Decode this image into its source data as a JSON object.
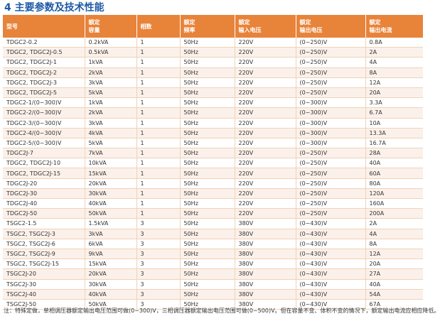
{
  "section_title": "4 主要参数及技术性能",
  "table": {
    "headers": [
      [
        "型号",
        ""
      ],
      [
        "额定",
        "容量"
      ],
      [
        "相数",
        ""
      ],
      [
        "额定",
        "频率"
      ],
      [
        "额定",
        "输入电压"
      ],
      [
        "额定",
        "输出电压"
      ],
      [
        "额定",
        "输出电流"
      ]
    ],
    "rows": [
      [
        "TDGC2-0.2",
        "0.2kVA",
        "1",
        "50Hz",
        "220V",
        "(0~250)V",
        "0.8A"
      ],
      [
        "TDGC2, TDGC2J-0.5",
        "0.5kVA",
        "1",
        "50Hz",
        "220V",
        "(0~250)V",
        "2A"
      ],
      [
        "TDGC2, TDGC2J-1",
        "1kVA",
        "1",
        "50Hz",
        "220V",
        "(0~250)V",
        "4A"
      ],
      [
        "TDGC2, TDGC2J-2",
        "2kVA",
        "1",
        "50Hz",
        "220V",
        "(0~250)V",
        "8A"
      ],
      [
        "TDGC2, TDGC2J-3",
        "3kVA",
        "1",
        "50Hz",
        "220V",
        "(0~250)V",
        "12A"
      ],
      [
        "TDGC2, TDGC2J-5",
        "5kVA",
        "1",
        "50Hz",
        "220V",
        "(0~250)V",
        "20A"
      ],
      [
        "TDGC2-1/(0~300)V",
        "1kVA",
        "1",
        "50Hz",
        "220V",
        "(0~300)V",
        "3.3A"
      ],
      [
        "TDGC2-2/(0~300)V",
        "2kVA",
        "1",
        "50Hz",
        "220V",
        "(0~300)V",
        "6.7A"
      ],
      [
        "TDGC2-3/(0~300)V",
        "3kVA",
        "1",
        "50Hz",
        "220V",
        "(0~300)V",
        "10A"
      ],
      [
        "TDGC2-4/(0~300)V",
        "4kVA",
        "1",
        "50Hz",
        "220V",
        "(0~300)V",
        "13.3A"
      ],
      [
        "TDGC2-5/(0~300)V",
        "5kVA",
        "1",
        "50Hz",
        "220V",
        "(0~300)V",
        "16.7A"
      ],
      [
        "TDGC2J-7",
        "7kVA",
        "1",
        "50Hz",
        "220V",
        "(0~250)V",
        "28A"
      ],
      [
        "TDGC2, TDGC2J-10",
        "10kVA",
        "1",
        "50Hz",
        "220V",
        "(0~250)V",
        "40A"
      ],
      [
        "TDGC2, TDGC2J-15",
        "15kVA",
        "1",
        "50Hz",
        "220V",
        "(0~250)V",
        "60A"
      ],
      [
        "TDGC2J-20",
        "20kVA",
        "1",
        "50Hz",
        "220V",
        "(0~250)V",
        "80A"
      ],
      [
        "TDGC2J-30",
        "30kVA",
        "1",
        "50Hz",
        "220V",
        "(0~250)V",
        "120A"
      ],
      [
        "TDGC2J-40",
        "40kVA",
        "1",
        "50Hz",
        "220V",
        "(0~250)V",
        "160A"
      ],
      [
        "TDGC2J-50",
        "50kVA",
        "1",
        "50Hz",
        "220V",
        "(0~250)V",
        "200A"
      ],
      [
        "TSGC2-1.5",
        "1.5kVA",
        "3",
        "50Hz",
        "380V",
        "(0~430)V",
        "2A"
      ],
      [
        "TSGC2, TSGC2J-3",
        "3kVA",
        "3",
        "50Hz",
        "380V",
        "(0~430)V",
        "4A"
      ],
      [
        "TSGC2, TSGC2J-6",
        "6kVA",
        "3",
        "50Hz",
        "380V",
        "(0~430)V",
        "8A"
      ],
      [
        "TSGC2, TSGC2J-9",
        "9kVA",
        "3",
        "50Hz",
        "380V",
        "(0~430)V",
        "12A"
      ],
      [
        "TSGC2, TSGC2J-15",
        "15kVA",
        "3",
        "50Hz",
        "380V",
        "(0~430)V",
        "20A"
      ],
      [
        "TSGC2J-20",
        "20kVA",
        "3",
        "50Hz",
        "380V",
        "(0~430)V",
        "27A"
      ],
      [
        "TSGC2J-30",
        "30kVA",
        "3",
        "50Hz",
        "380V",
        "(0~430)V",
        "40A"
      ],
      [
        "TSGC2J-40",
        "40kVA",
        "3",
        "50Hz",
        "380V",
        "(0~430)V",
        "54A"
      ],
      [
        "TSGC2J-50",
        "50kVA",
        "3",
        "50Hz",
        "380V",
        "(0~430)V",
        "67A"
      ]
    ]
  },
  "note": "注：特殊定做，单相调压器额定输出电压范围可做(0~300)V，三相调压器额定输出电压范围可做(0~500)V。但在容量不变、体积不变的情况下，额定输出电流应相应降低。",
  "colors": {
    "title": "#1e5aa6",
    "header_bg": "#e8833a",
    "row_alt": "#fbf1ea"
  }
}
